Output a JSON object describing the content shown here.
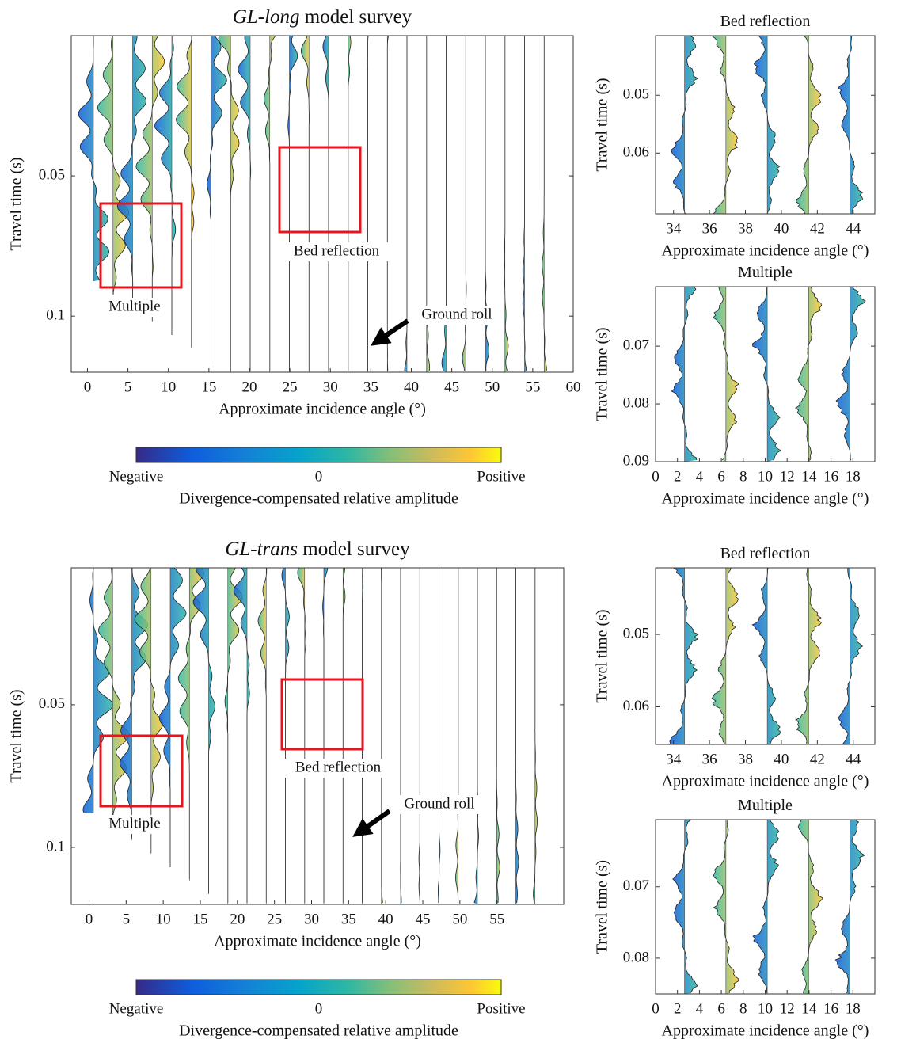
{
  "chart_data": [
    {
      "type": "wiggle",
      "title_italic": "GL-long",
      "title": "model survey",
      "xlabel": "Approximate incidence angle (°)",
      "ylabel": "Travel time (s)",
      "xlim": [
        -2,
        60
      ],
      "ylim": [
        0,
        0.12
      ],
      "xticks": [
        0,
        5,
        10,
        15,
        20,
        25,
        30,
        35,
        40,
        45,
        50,
        55,
        60
      ],
      "yticks": [
        0.05,
        0.1
      ],
      "annotations": [
        "Bed reflection",
        "Multiple",
        "Ground roll"
      ],
      "colorbar": {
        "labels": [
          "Negative",
          "0",
          "Positive"
        ],
        "label": "Divergence-compensated relative amplitude"
      }
    },
    {
      "type": "wiggle",
      "title": "Bed reflection",
      "xlabel": "Approximate incidence angle (°)",
      "ylabel": "Travel time (s)",
      "xlim": [
        33,
        45.2
      ],
      "ylim": [
        0.0397,
        0.0705
      ],
      "xticks": [
        34,
        36,
        38,
        40,
        42,
        44
      ],
      "yticks": [
        0.05,
        0.06
      ]
    },
    {
      "type": "wiggle",
      "title": "Multiple",
      "xlabel": "Approximate incidence angle (°)",
      "ylabel": "Travel time (s)",
      "xlim": [
        0,
        20
      ],
      "ylim": [
        0.0597,
        0.09
      ],
      "xticks": [
        0,
        2,
        4,
        6,
        8,
        10,
        12,
        14,
        16,
        18
      ],
      "yticks": [
        0.07,
        0.08,
        0.09
      ]
    },
    {
      "type": "wiggle",
      "title_italic": "GL-trans",
      "title": "model survey",
      "xlabel": "Approximate incidence angle (°)",
      "ylabel": "Travel time (s)",
      "xlim": [
        -2.4,
        64
      ],
      "ylim": [
        0.002,
        0.12
      ],
      "xticks": [
        0,
        5,
        10,
        15,
        20,
        25,
        30,
        35,
        40,
        45,
        50,
        55
      ],
      "yticks": [
        0.05,
        0.1
      ],
      "annotations": [
        "Bed reflection",
        "Multiple",
        "Ground roll"
      ],
      "colorbar": {
        "labels": [
          "Negative",
          "0",
          "Positive"
        ],
        "label": "Divergence-compensated relative amplitude"
      }
    },
    {
      "type": "wiggle",
      "title": "Bed reflection",
      "xlabel": "Approximate incidence angle (°)",
      "ylabel": "Travel time (s)",
      "xlim": [
        33,
        45.2
      ],
      "ylim": [
        0.0408,
        0.0652
      ],
      "xticks": [
        34,
        36,
        38,
        40,
        42,
        44
      ],
      "yticks": [
        0.05,
        0.06
      ]
    },
    {
      "type": "wiggle",
      "title": "Multiple",
      "xlabel": "Approximate incidence angle (°)",
      "ylabel": "Travel time (s)",
      "xlim": [
        0,
        20
      ],
      "ylim": [
        0.0606,
        0.085
      ],
      "xticks": [
        0,
        2,
        4,
        6,
        8,
        10,
        12,
        14,
        16,
        18
      ],
      "yticks": [
        0.07,
        0.08
      ]
    }
  ]
}
